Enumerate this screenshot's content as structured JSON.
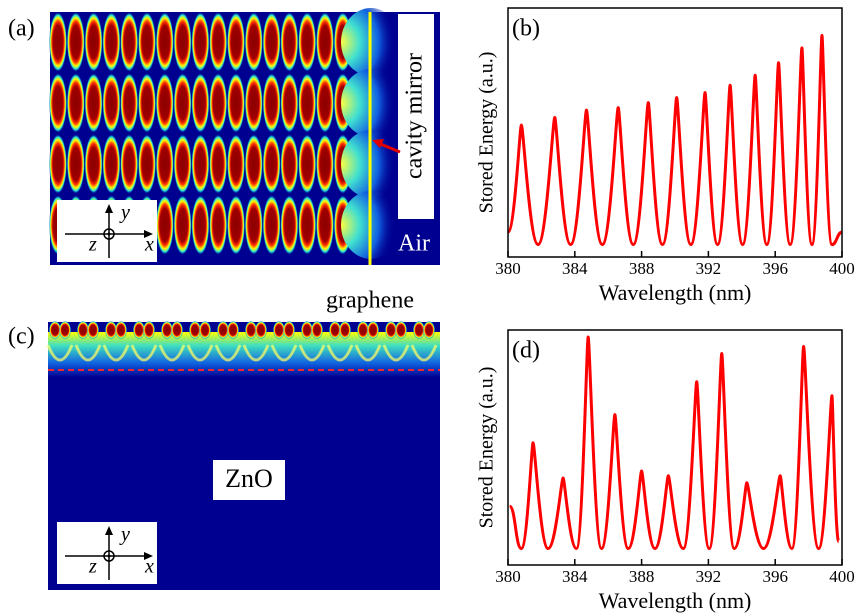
{
  "panel_a": {
    "label": "(a)",
    "mirror": "cavity mirror",
    "medium": "Air",
    "axis_x": "x",
    "axis_y": "y",
    "axis_z": "z"
  },
  "panel_c": {
    "label": "(c)",
    "layer": "graphene",
    "medium": "ZnO",
    "axis_x": "x",
    "axis_y": "y",
    "axis_z": "z"
  },
  "chart_data": [
    {
      "type": "line",
      "panel": "(b)",
      "x_label": "Wavelength (nm)",
      "y_label": "Stored Energy (a.u.)",
      "xlim": [
        380,
        400
      ],
      "xticks": [
        380,
        384,
        388,
        392,
        396,
        400
      ],
      "ylim": [
        0,
        1
      ],
      "x": [
        380,
        380.8,
        381.8,
        382.8,
        383.75,
        384.7,
        385.65,
        386.6,
        387.5,
        388.4,
        389.25,
        390.1,
        390.95,
        391.8,
        392.55,
        393.3,
        394.05,
        394.8,
        395.5,
        396.2,
        396.9,
        397.6,
        398.2,
        398.8,
        399.4,
        400
      ],
      "series": [
        {
          "color": "#ff0000",
          "values": [
            0.1,
            0.53,
            0.05,
            0.56,
            0.05,
            0.59,
            0.05,
            0.6,
            0.05,
            0.62,
            0.05,
            0.64,
            0.05,
            0.66,
            0.05,
            0.69,
            0.05,
            0.73,
            0.05,
            0.78,
            0.05,
            0.84,
            0.05,
            0.89,
            0.05,
            0.1
          ]
        }
      ]
    },
    {
      "type": "line",
      "panel": "(d)",
      "x_label": "Wavelength (nm)",
      "y_label": "Stored Energy (a.u.)",
      "xlim": [
        380,
        400
      ],
      "xticks": [
        380,
        384,
        388,
        392,
        396,
        400
      ],
      "ylim": [
        0,
        1
      ],
      "x": [
        380.1,
        380.8,
        381.5,
        382.4,
        383.3,
        384.1,
        384.8,
        385.6,
        386.4,
        387.2,
        388,
        388.8,
        389.6,
        390.5,
        391.3,
        392.05,
        392.8,
        393.55,
        394.3,
        395.3,
        396.3,
        397,
        397.7,
        398.6,
        399.4,
        399.8
      ],
      "series": [
        {
          "color": "#ff0000",
          "values": [
            0.25,
            0.07,
            0.52,
            0.07,
            0.37,
            0.07,
            0.97,
            0.07,
            0.64,
            0.07,
            0.4,
            0.07,
            0.38,
            0.07,
            0.78,
            0.07,
            0.9,
            0.07,
            0.35,
            0.07,
            0.38,
            0.07,
            0.93,
            0.07,
            0.72,
            0.1
          ]
        }
      ]
    }
  ]
}
